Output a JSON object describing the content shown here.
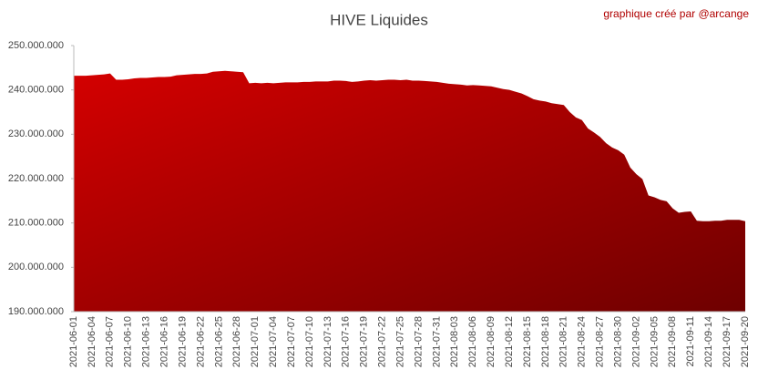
{
  "chart_data": {
    "type": "area",
    "title": "HIVE Liquides",
    "subtitle": "graphique créé par @arcange",
    "categories": [
      "2021-06-01",
      null,
      null,
      "2021-06-04",
      null,
      null,
      "2021-06-07",
      null,
      null,
      "2021-06-10",
      null,
      null,
      "2021-06-13",
      null,
      null,
      "2021-06-16",
      null,
      null,
      "2021-06-19",
      null,
      null,
      "2021-06-22",
      null,
      null,
      "2021-06-25",
      null,
      null,
      "2021-06-28",
      null,
      null,
      "2021-07-01",
      null,
      null,
      "2021-07-04",
      null,
      null,
      "2021-07-07",
      null,
      null,
      "2021-07-10",
      null,
      null,
      "2021-07-13",
      null,
      null,
      "2021-07-16",
      null,
      null,
      "2021-07-19",
      null,
      null,
      "2021-07-22",
      null,
      null,
      "2021-07-25",
      null,
      null,
      "2021-07-28",
      null,
      null,
      "2021-07-31",
      null,
      null,
      "2021-08-03",
      null,
      null,
      "2021-08-06",
      null,
      null,
      "2021-08-09",
      null,
      null,
      "2021-08-12",
      null,
      null,
      "2021-08-15",
      null,
      null,
      "2021-08-18",
      null,
      null,
      "2021-08-21",
      null,
      null,
      "2021-08-24",
      null,
      null,
      "2021-08-27",
      null,
      null,
      "2021-08-30",
      null,
      null,
      "2021-09-02",
      null,
      null,
      "2021-09-05",
      null,
      null,
      "2021-09-08",
      null,
      null,
      "2021-09-11",
      null,
      null,
      "2021-09-14",
      null,
      null,
      "2021-09-17",
      null,
      null,
      "2021-09-20"
    ],
    "values": [
      243200000,
      243200000,
      243200000,
      243300000,
      243400000,
      243500000,
      243700000,
      242300000,
      242300000,
      242400000,
      242600000,
      242700000,
      242700000,
      242800000,
      242900000,
      242900000,
      243000000,
      243300000,
      243400000,
      243500000,
      243600000,
      243600000,
      243700000,
      244100000,
      244200000,
      244300000,
      244200000,
      244100000,
      244000000,
      241500000,
      241600000,
      241500000,
      241600000,
      241500000,
      241600000,
      241700000,
      241700000,
      241700000,
      241800000,
      241800000,
      241900000,
      241900000,
      241900000,
      242100000,
      242100000,
      242000000,
      241800000,
      241900000,
      242100000,
      242200000,
      242100000,
      242200000,
      242300000,
      242300000,
      242200000,
      242300000,
      242100000,
      242100000,
      242000000,
      241900000,
      241800000,
      241600000,
      241400000,
      241300000,
      241200000,
      241000000,
      241100000,
      241000000,
      240900000,
      240800000,
      240500000,
      240200000,
      240000000,
      239600000,
      239200000,
      238600000,
      237900000,
      237600000,
      237400000,
      237000000,
      236800000,
      236600000,
      235000000,
      233800000,
      233200000,
      231300000,
      230400000,
      229400000,
      228000000,
      227000000,
      226400000,
      225400000,
      222500000,
      221000000,
      219900000,
      216200000,
      215800000,
      215200000,
      214900000,
      213300000,
      212300000,
      212500000,
      212600000,
      210500000,
      210400000,
      210400000,
      210500000,
      210500000,
      210700000,
      210700000,
      210700000,
      210400000
    ],
    "gradient": [
      "#d40000",
      "#6e0000"
    ],
    "ylim": [
      190000000,
      250000000
    ],
    "yticks": [
      {
        "value": 190000000,
        "label": "190.000.000"
      },
      {
        "value": 200000000,
        "label": "200.000.000"
      },
      {
        "value": 210000000,
        "label": "210.000.000"
      },
      {
        "value": 220000000,
        "label": "220.000.000"
      },
      {
        "value": 230000000,
        "label": "230.000.000"
      },
      {
        "value": 240000000,
        "label": "240.000.000"
      },
      {
        "value": 250000000,
        "label": "250.000.000"
      }
    ],
    "grid": false
  }
}
